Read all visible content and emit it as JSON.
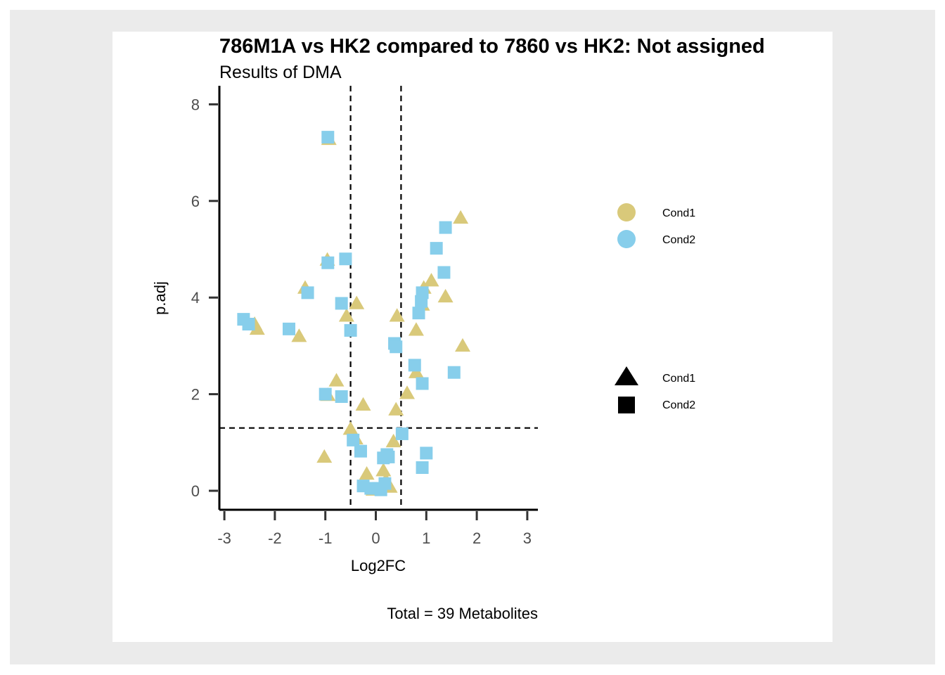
{
  "chart_data": {
    "type": "scatter",
    "title": "786M1A vs HK2 compared to 7860 vs HK2: Not assigned",
    "subtitle": "Results of DMA",
    "xlabel": "Log2FC",
    "ylabel": "p.adj",
    "caption": "Total = 39 Metabolites",
    "xlim": [
      -3,
      3
    ],
    "ylim": [
      0,
      8
    ],
    "x_ticks": [
      "-3",
      "-2",
      "-1",
      "0",
      "1",
      "2",
      "3"
    ],
    "y_ticks": [
      "0",
      "2",
      "4",
      "6",
      "8"
    ],
    "thresholds": {
      "x": [
        -0.5,
        0.5
      ],
      "y": 1.3
    },
    "grid": false,
    "legend_position": "right",
    "colors": {
      "Cond1": "#d9c97a",
      "Cond2": "#87ceeb"
    },
    "color_legend": {
      "items": [
        "Cond1",
        "Cond2"
      ]
    },
    "shape_legend": {
      "items": [
        "Cond1",
        "Cond2"
      ]
    },
    "series": [
      {
        "name": "Cond1",
        "shape": "triangle",
        "color": "#d9c97a",
        "points": [
          [
            -0.93,
            7.28
          ],
          [
            1.68,
            5.65
          ],
          [
            -0.96,
            4.78
          ],
          [
            -1.4,
            4.2
          ],
          [
            1.1,
            4.35
          ],
          [
            0.95,
            4.2
          ],
          [
            1.38,
            4.02
          ],
          [
            -0.38,
            3.88
          ],
          [
            0.92,
            3.85
          ],
          [
            -0.58,
            3.62
          ],
          [
            0.42,
            3.62
          ],
          [
            -2.4,
            3.45
          ],
          [
            -2.35,
            3.35
          ],
          [
            0.8,
            3.33
          ],
          [
            -1.52,
            3.2
          ],
          [
            1.72,
            3.0
          ],
          [
            0.8,
            2.45
          ],
          [
            -0.78,
            2.28
          ],
          [
            0.62,
            2.02
          ],
          [
            -0.95,
            1.98
          ],
          [
            -0.25,
            1.78
          ],
          [
            0.4,
            1.68
          ],
          [
            -0.5,
            1.28
          ],
          [
            -0.4,
            1.08
          ],
          [
            0.35,
            1.02
          ],
          [
            -1.02,
            0.7
          ],
          [
            -0.18,
            0.35
          ],
          [
            0.15,
            0.42
          ],
          [
            0.2,
            0.22
          ],
          [
            0.28,
            0.08
          ],
          [
            -0.05,
            0.02
          ]
        ]
      },
      {
        "name": "Cond2",
        "shape": "square",
        "color": "#87ceeb",
        "points": [
          [
            -0.95,
            7.32
          ],
          [
            1.38,
            5.45
          ],
          [
            1.2,
            5.02
          ],
          [
            -0.6,
            4.8
          ],
          [
            -0.95,
            4.72
          ],
          [
            1.35,
            4.52
          ],
          [
            0.92,
            4.1
          ],
          [
            -1.35,
            4.1
          ],
          [
            0.9,
            3.92
          ],
          [
            -0.68,
            3.88
          ],
          [
            0.85,
            3.68
          ],
          [
            -2.62,
            3.55
          ],
          [
            -2.52,
            3.45
          ],
          [
            -1.72,
            3.35
          ],
          [
            -0.5,
            3.32
          ],
          [
            0.37,
            3.05
          ],
          [
            0.4,
            2.98
          ],
          [
            0.77,
            2.6
          ],
          [
            1.55,
            2.45
          ],
          [
            0.92,
            2.22
          ],
          [
            -1.0,
            2.0
          ],
          [
            -0.68,
            1.95
          ],
          [
            0.52,
            1.18
          ],
          [
            -0.45,
            1.05
          ],
          [
            -0.3,
            0.82
          ],
          [
            1.0,
            0.78
          ],
          [
            0.22,
            0.75
          ],
          [
            0.15,
            0.68
          ],
          [
            0.25,
            0.7
          ],
          [
            0.92,
            0.48
          ],
          [
            0.18,
            0.15
          ],
          [
            -0.25,
            0.1
          ],
          [
            0.05,
            0.05
          ],
          [
            -0.1,
            0.05
          ],
          [
            0.1,
            0.02
          ]
        ]
      }
    ]
  }
}
